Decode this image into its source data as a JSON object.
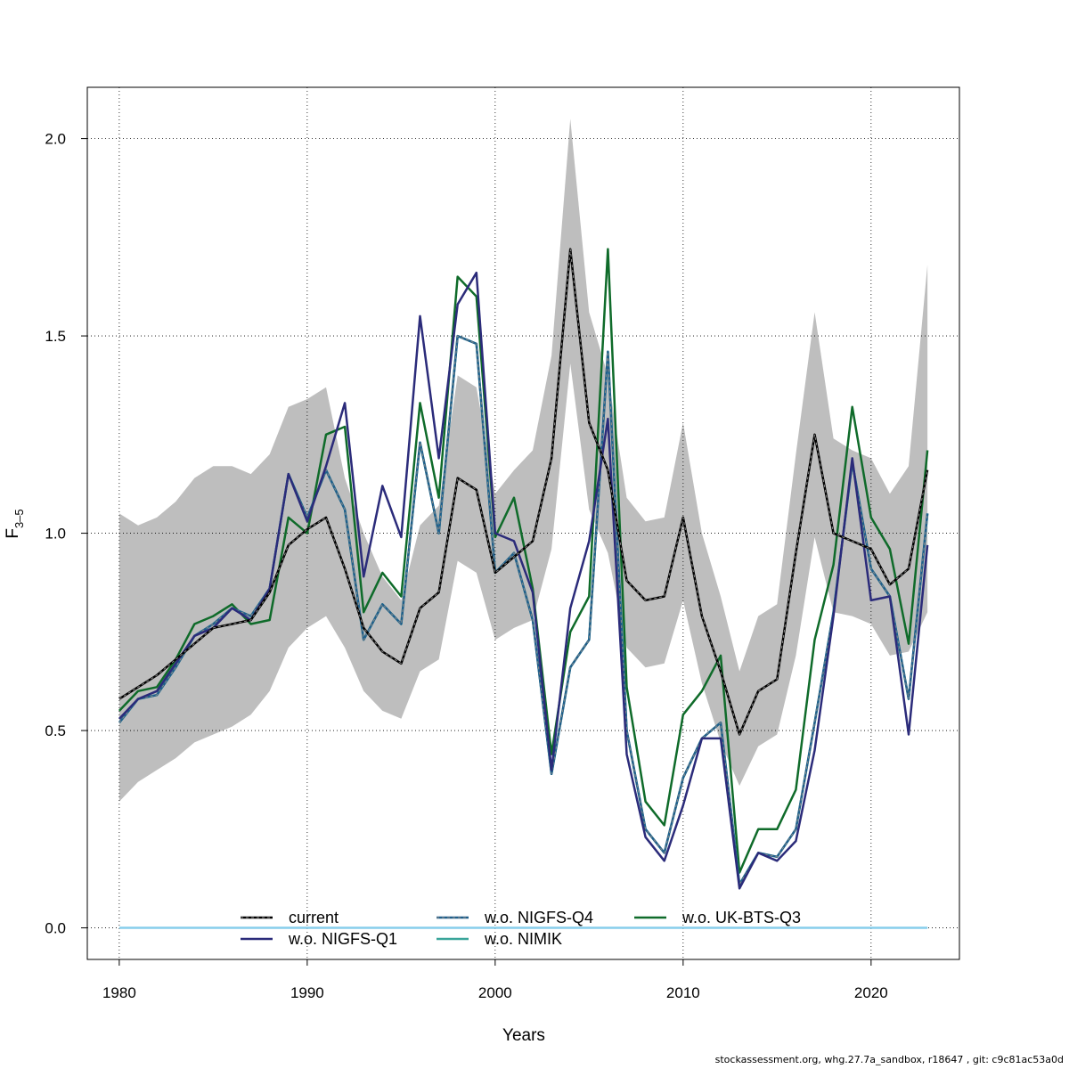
{
  "chart_data": {
    "type": "line",
    "xlabel": "Years",
    "ylabel": "F",
    "ylabel_sub": "3–5",
    "xlim": [
      1978.3,
      2024.7
    ],
    "ylim": [
      -0.08,
      2.13
    ],
    "x_ticks": [
      1980,
      1990,
      2000,
      2010,
      2020
    ],
    "y_ticks": [
      0.0,
      0.5,
      1.0,
      1.5,
      2.0
    ],
    "y_tick_labels": [
      "0.0",
      "0.5",
      "1.0",
      "1.5",
      "2.0"
    ],
    "grid": true,
    "legend_position": "bottom",
    "years": [
      1980,
      1981,
      1982,
      1983,
      1984,
      1985,
      1986,
      1987,
      1988,
      1989,
      1990,
      1991,
      1992,
      1993,
      1994,
      1995,
      1996,
      1997,
      1998,
      1999,
      2000,
      2001,
      2002,
      2003,
      2004,
      2005,
      2006,
      2007,
      2008,
      2009,
      2010,
      2011,
      2012,
      2013,
      2014,
      2015,
      2016,
      2017,
      2018,
      2019,
      2020,
      2021,
      2022,
      2023
    ],
    "band": {
      "color": "#bebebe",
      "upper": [
        1.05,
        1.02,
        1.04,
        1.08,
        1.14,
        1.17,
        1.17,
        1.15,
        1.2,
        1.32,
        1.34,
        1.37,
        1.14,
        1.0,
        0.89,
        0.83,
        1.02,
        1.07,
        1.4,
        1.37,
        1.1,
        1.16,
        1.21,
        1.45,
        2.05,
        1.56,
        1.4,
        1.09,
        1.03,
        1.04,
        1.28,
        1.0,
        0.84,
        0.65,
        0.79,
        0.82,
        1.2,
        1.56,
        1.24,
        1.21,
        1.19,
        1.1,
        1.17,
        1.68
      ],
      "lower": [
        0.32,
        0.37,
        0.4,
        0.43,
        0.47,
        0.49,
        0.51,
        0.54,
        0.6,
        0.71,
        0.76,
        0.79,
        0.71,
        0.6,
        0.55,
        0.53,
        0.65,
        0.68,
        0.93,
        0.9,
        0.73,
        0.76,
        0.78,
        0.96,
        1.43,
        1.06,
        0.95,
        0.71,
        0.66,
        0.67,
        0.83,
        0.62,
        0.47,
        0.36,
        0.46,
        0.49,
        0.69,
        0.99,
        0.8,
        0.79,
        0.77,
        0.69,
        0.7,
        0.8
      ]
    },
    "baseline": {
      "y": 0.0,
      "color": "#87ceeb"
    },
    "series": [
      {
        "name": "current",
        "color": "#000000",
        "dash": true,
        "values": [
          0.58,
          0.61,
          0.64,
          0.68,
          0.72,
          0.76,
          0.77,
          0.78,
          0.85,
          0.97,
          1.01,
          1.04,
          0.91,
          0.76,
          0.7,
          0.67,
          0.81,
          0.85,
          1.14,
          1.11,
          0.9,
          0.94,
          0.98,
          1.19,
          1.72,
          1.28,
          1.16,
          0.88,
          0.83,
          0.84,
          1.04,
          0.79,
          0.65,
          0.49,
          0.6,
          0.63,
          0.95,
          1.25,
          1.0,
          0.98,
          0.96,
          0.87,
          0.91,
          1.16
        ]
      },
      {
        "name": "w.o. NIGFS-Q1",
        "color": "#2b2b7a",
        "dash": false,
        "values": [
          0.53,
          0.58,
          0.6,
          0.67,
          0.74,
          0.76,
          0.81,
          0.78,
          0.86,
          1.15,
          1.03,
          1.17,
          1.33,
          0.89,
          1.12,
          0.99,
          1.55,
          1.19,
          1.58,
          1.66,
          1.0,
          0.98,
          0.85,
          0.4,
          0.81,
          0.98,
          1.29,
          0.44,
          0.23,
          0.17,
          0.31,
          0.48,
          0.48,
          0.1,
          0.19,
          0.17,
          0.22,
          0.45,
          0.79,
          1.19,
          0.83,
          0.84,
          0.49,
          0.97
        ]
      },
      {
        "name": "w.o. NIGFS-Q4",
        "color": "#1f5f8b",
        "dash": true,
        "values": [
          0.52,
          0.58,
          0.59,
          0.66,
          0.74,
          0.77,
          0.81,
          0.79,
          0.86,
          1.15,
          1.04,
          1.16,
          1.06,
          0.73,
          0.82,
          0.77,
          1.23,
          1.0,
          1.5,
          1.48,
          0.9,
          0.95,
          0.78,
          0.39,
          0.66,
          0.73,
          1.46,
          0.5,
          0.25,
          0.19,
          0.38,
          0.48,
          0.52,
          0.11,
          0.19,
          0.18,
          0.25,
          0.52,
          0.8,
          1.18,
          0.91,
          0.84,
          0.58,
          1.05
        ]
      },
      {
        "name": "w.o. NIMIK",
        "color": "#3aa59a",
        "dash": false,
        "values": [
          0.52,
          0.58,
          0.59,
          0.66,
          0.74,
          0.77,
          0.81,
          0.79,
          0.86,
          1.15,
          1.04,
          1.16,
          1.06,
          0.73,
          0.82,
          0.77,
          1.23,
          1.0,
          1.5,
          1.48,
          0.9,
          0.95,
          0.78,
          0.39,
          0.66,
          0.73,
          1.46,
          0.5,
          0.25,
          0.19,
          0.38,
          0.48,
          0.52,
          0.11,
          0.19,
          0.18,
          0.25,
          0.52,
          0.8,
          1.18,
          0.91,
          0.84,
          0.58,
          1.05
        ]
      },
      {
        "name": "w.o. UK-BTS-Q3",
        "color": "#0f6b2a",
        "dash": false,
        "values": [
          0.55,
          0.6,
          0.61,
          0.68,
          0.77,
          0.79,
          0.82,
          0.77,
          0.78,
          1.04,
          1.0,
          1.25,
          1.27,
          0.8,
          0.9,
          0.84,
          1.33,
          1.09,
          1.65,
          1.6,
          0.99,
          1.09,
          0.86,
          0.44,
          0.75,
          0.84,
          1.72,
          0.61,
          0.32,
          0.26,
          0.54,
          0.6,
          0.69,
          0.14,
          0.25,
          0.25,
          0.35,
          0.73,
          0.92,
          1.32,
          1.04,
          0.96,
          0.72,
          1.21
        ]
      }
    ]
  },
  "footer_text": "stockassessment.org, whg.27.7a_sandbox, r18647 , git: c9c81ac53a0d"
}
